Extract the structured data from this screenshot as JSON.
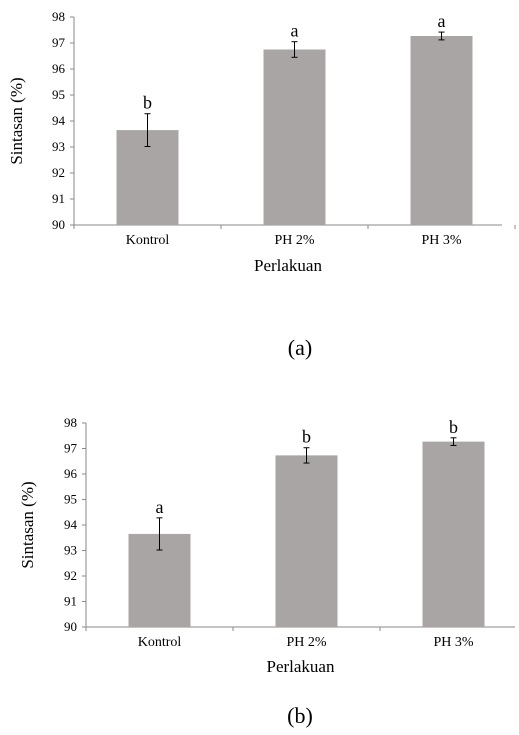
{
  "chart_data": [
    {
      "type": "bar",
      "panel_label": "(a)",
      "xlabel": "Perlakuan",
      "ylabel": "Sintasan (%)",
      "categories": [
        "Kontrol",
        "PH 2%",
        "PH 3%"
      ],
      "values": [
        93.65,
        96.75,
        97.27
      ],
      "errors": [
        0.63,
        0.3,
        0.15
      ],
      "significance_letters": [
        "b",
        "a",
        "a"
      ],
      "ylim": [
        90,
        98
      ],
      "yticks": [
        90,
        91,
        92,
        93,
        94,
        95,
        96,
        97,
        98
      ],
      "bar_color": "#a9a5a4",
      "grid": false,
      "legend": "none"
    },
    {
      "type": "bar",
      "panel_label": "(b)",
      "xlabel": "Perlakuan",
      "ylabel": "Sintasan (%)",
      "categories": [
        "Kontrol",
        "PH 2%",
        "PH 3%"
      ],
      "values": [
        93.65,
        96.73,
        97.27
      ],
      "errors": [
        0.63,
        0.3,
        0.15
      ],
      "significance_letters": [
        "a",
        "b",
        "b"
      ],
      "ylim": [
        90,
        98
      ],
      "yticks": [
        90,
        91,
        92,
        93,
        94,
        95,
        96,
        97,
        98
      ],
      "bar_color": "#a9a5a4",
      "grid": false,
      "legend": "none"
    }
  ]
}
